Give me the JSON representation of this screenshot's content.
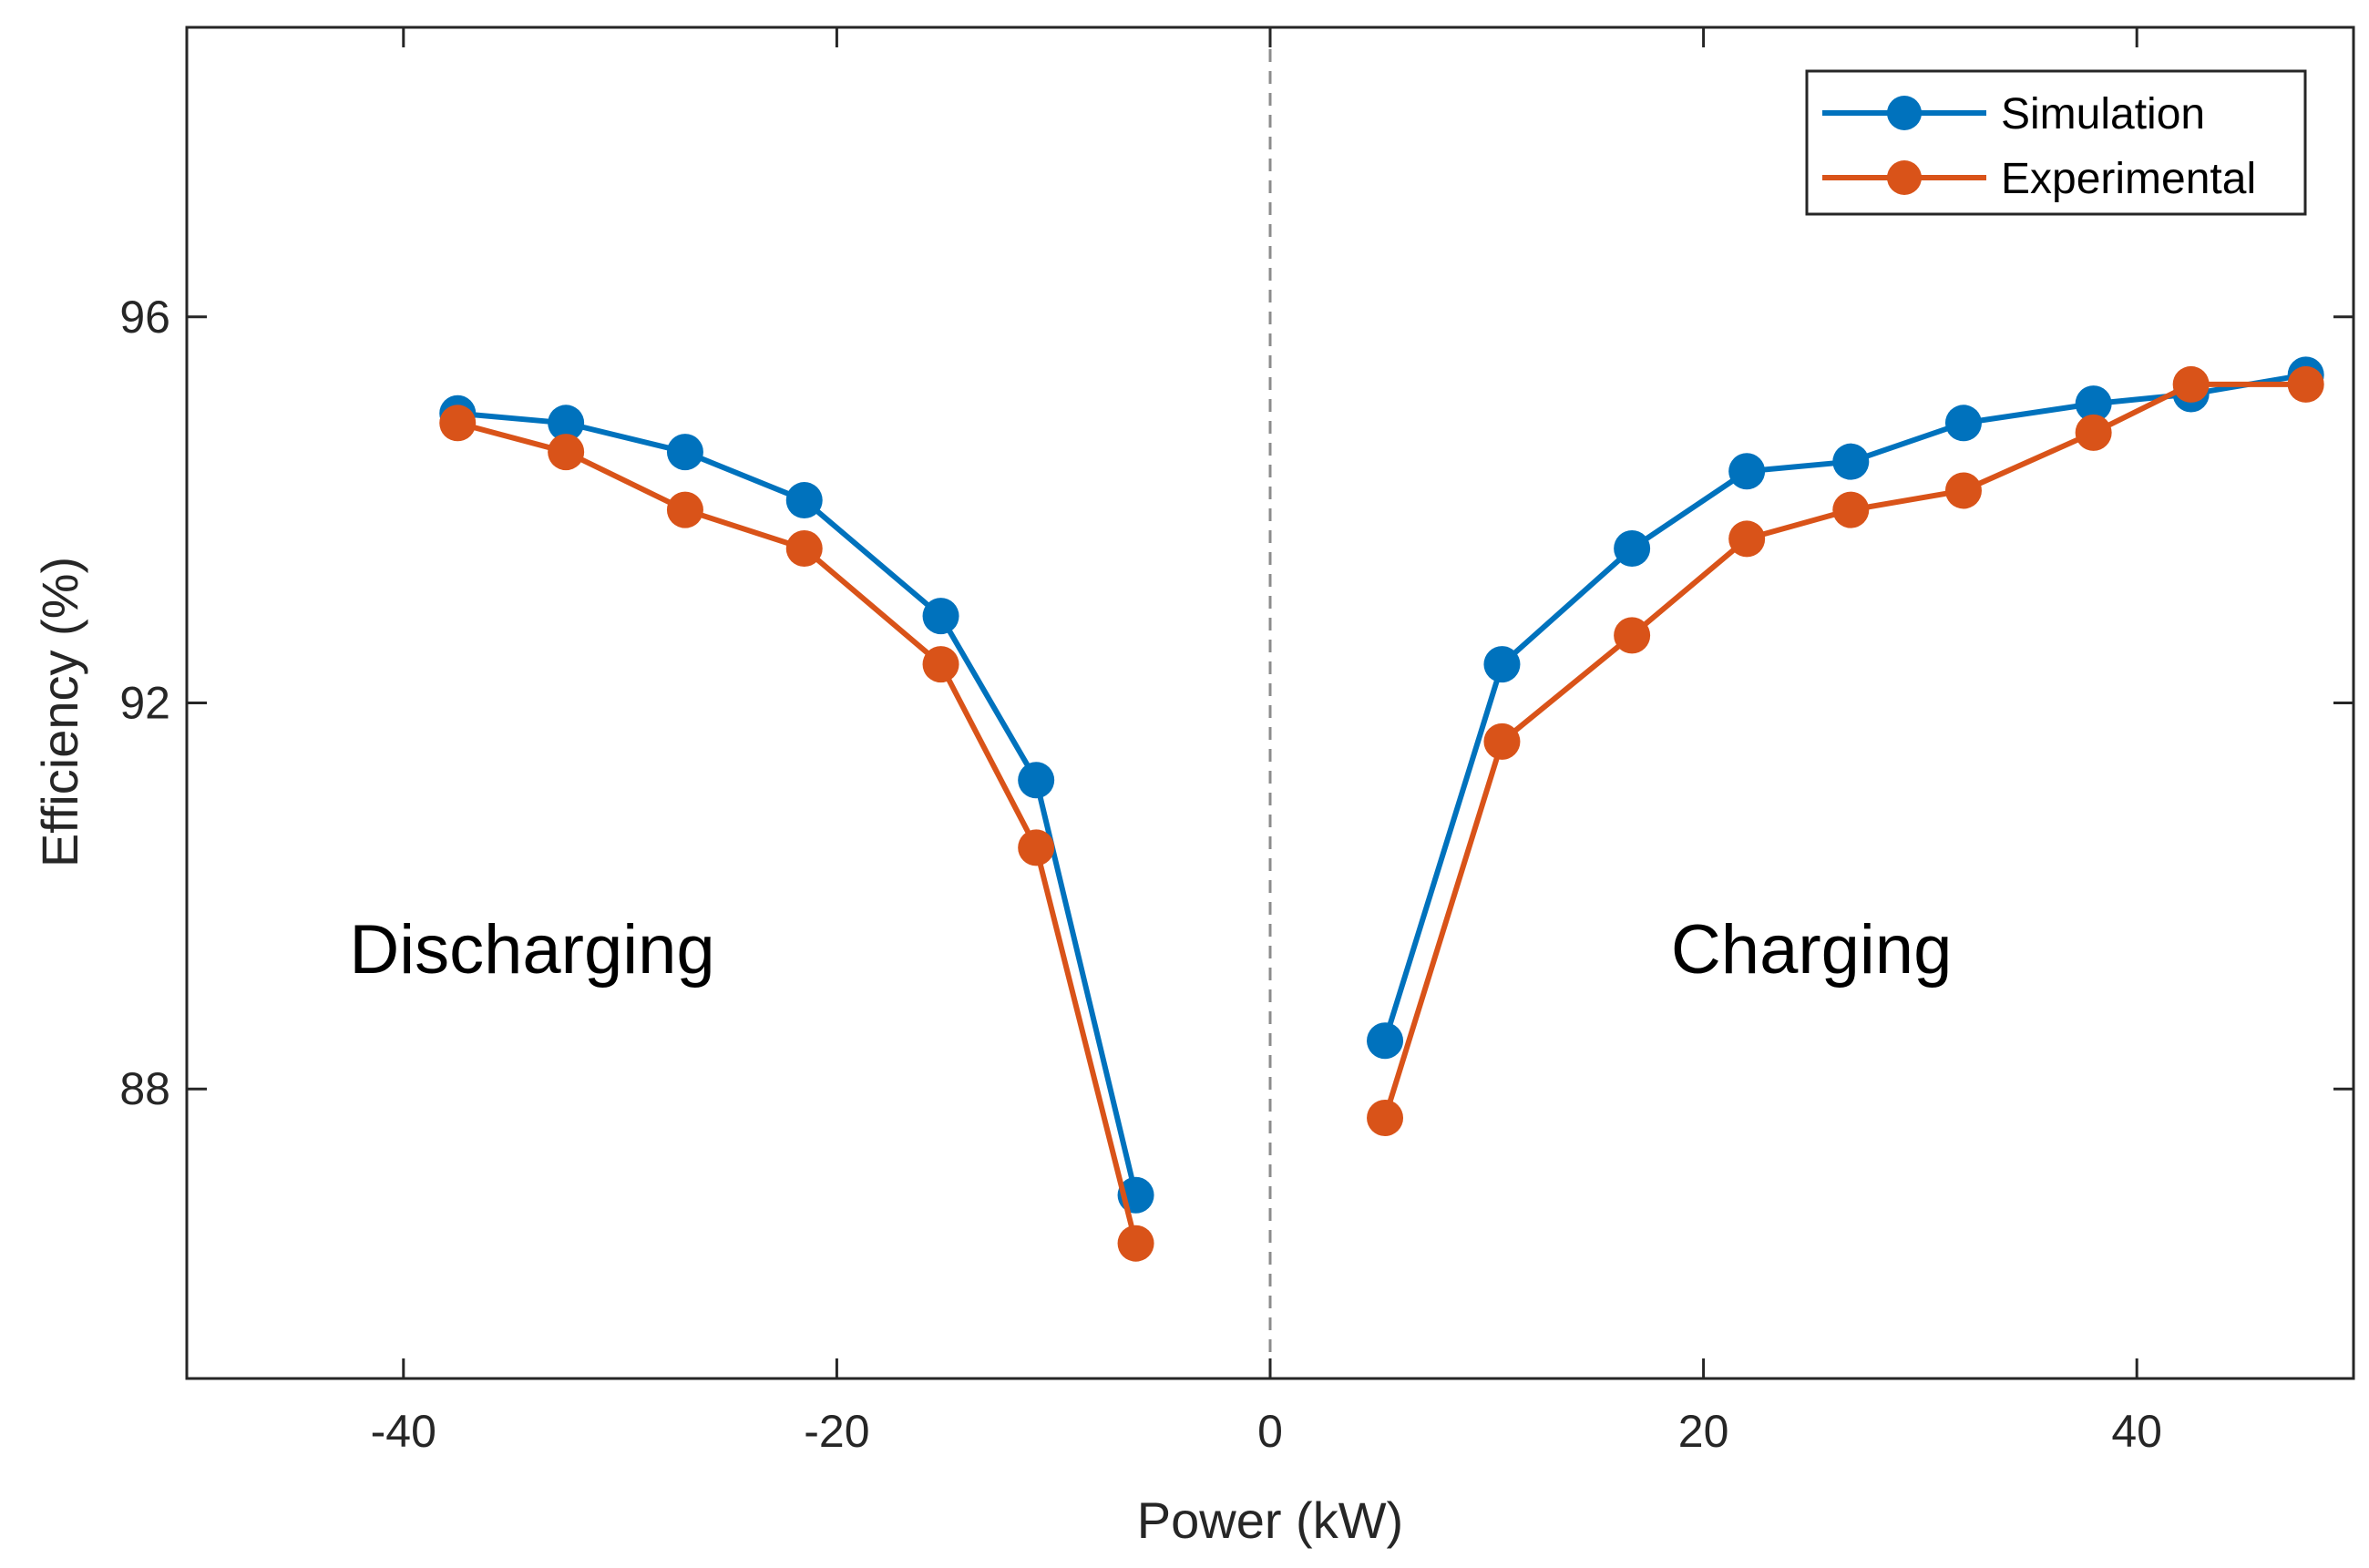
{
  "chart_data": {
    "type": "line",
    "title": "",
    "xlabel": "Power (kW)",
    "ylabel": "Efficiency (%)",
    "xlim": [
      -50,
      50
    ],
    "ylim": [
      85,
      99
    ],
    "xticks": [
      -40,
      -20,
      0,
      20,
      40
    ],
    "yticks": [
      88,
      92,
      96
    ],
    "grid": false,
    "legend_position": "top-right",
    "reference_line": {
      "x": 0,
      "style": "dashed"
    },
    "annotations": [
      {
        "text": "Discharging",
        "x": -42.5,
        "y": 89.2
      },
      {
        "text": "Charging",
        "x": 18.5,
        "y": 89.2
      }
    ],
    "series": [
      {
        "name": "Simulation",
        "color": "#0072BD",
        "segments": [
          {
            "x": [
              -37.5,
              -32.5,
              -27.0,
              -21.5,
              -15.2,
              -10.8,
              -6.2
            ],
            "y": [
              95.0,
              94.9,
              94.6,
              94.1,
              92.9,
              91.2,
              86.9
            ]
          },
          {
            "x": [
              5.3,
              10.7,
              16.7,
              22.0,
              26.8,
              32.0,
              38.0,
              42.5,
              47.8
            ],
            "y": [
              88.5,
              92.4,
              93.6,
              94.4,
              94.5,
              94.9,
              95.1,
              95.2,
              95.4
            ]
          }
        ]
      },
      {
        "name": "Experimental",
        "color": "#D95319",
        "segments": [
          {
            "x": [
              -37.5,
              -32.5,
              -27.0,
              -21.5,
              -15.2,
              -10.8,
              -6.2
            ],
            "y": [
              94.9,
              94.6,
              94.0,
              93.6,
              92.4,
              90.5,
              86.4
            ]
          },
          {
            "x": [
              5.3,
              10.7,
              16.7,
              22.0,
              26.8,
              32.0,
              38.0,
              42.5,
              47.8
            ],
            "y": [
              87.7,
              91.6,
              92.7,
              93.7,
              94.0,
              94.2,
              94.8,
              95.3,
              95.3
            ]
          }
        ]
      }
    ]
  }
}
